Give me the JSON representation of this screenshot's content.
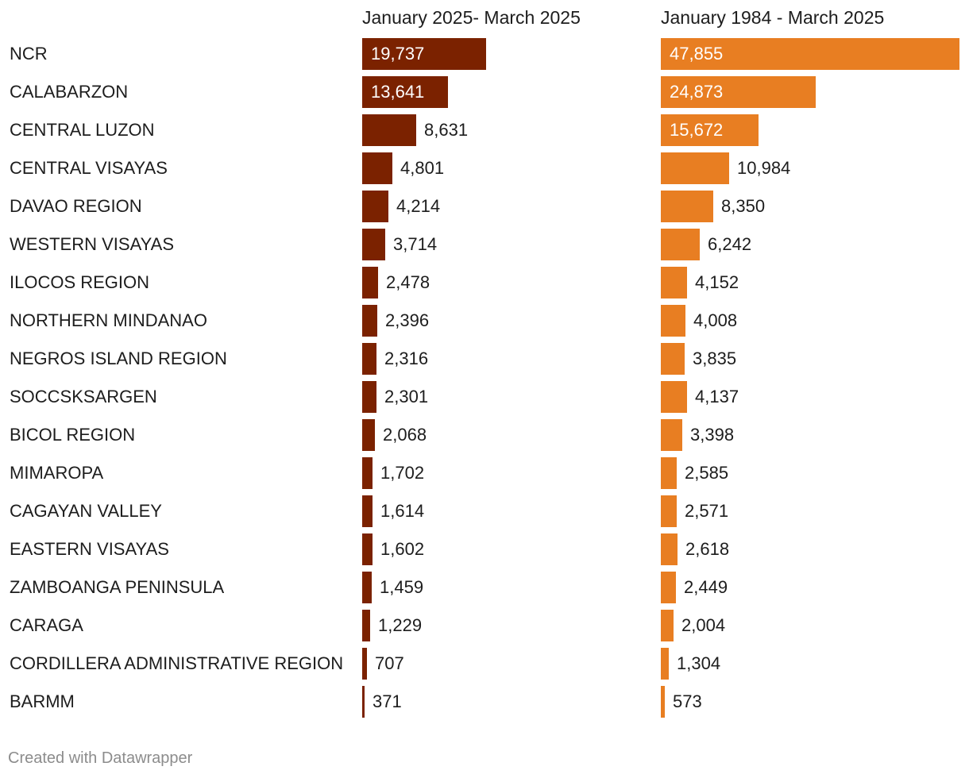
{
  "chart_data": {
    "type": "bar",
    "orientation": "horizontal",
    "categories": [
      "NCR",
      "CALABARZON",
      "CENTRAL LUZON",
      "CENTRAL VISAYAS",
      "DAVAO REGION",
      "WESTERN VISAYAS",
      "ILOCOS REGION",
      "NORTHERN MINDANAO",
      "NEGROS ISLAND REGION",
      "SOCCSKSARGEN",
      "BICOL REGION",
      "MIMAROPA",
      "CAGAYAN VALLEY",
      "EASTERN VISAYAS",
      "ZAMBOANGA PENINSULA",
      "CARAGA",
      "CORDILLERA ADMINISTRATIVE REGION",
      "BARMM"
    ],
    "series": [
      {
        "name": "January 2025- March 2025",
        "color": "#7b2200",
        "values": [
          19737,
          13641,
          8631,
          4801,
          4214,
          3714,
          2478,
          2396,
          2316,
          2301,
          2068,
          1702,
          1614,
          1602,
          1459,
          1229,
          707,
          371
        ],
        "labels": [
          "19,737",
          "13,641",
          "8,631",
          "4,801",
          "4,214",
          "3,714",
          "2,478",
          "2,396",
          "2,316",
          "2,301",
          "2,068",
          "1,702",
          "1,614",
          "1,602",
          "1,459",
          "1,229",
          "707",
          "371"
        ]
      },
      {
        "name": "January 1984 - March 2025",
        "color": "#e87e22",
        "values": [
          47855,
          24873,
          15672,
          10984,
          8350,
          6242,
          4152,
          4008,
          3835,
          4137,
          3398,
          2585,
          2571,
          2618,
          2449,
          2004,
          1304,
          573
        ],
        "labels": [
          "47,855",
          "24,873",
          "15,672",
          "10,984",
          "8,350",
          "6,242",
          "4,152",
          "4,008",
          "3,835",
          "4,137",
          "3,398",
          "2,585",
          "2,571",
          "2,618",
          "2,449",
          "2,004",
          "1,304",
          "573"
        ]
      }
    ],
    "grid": false,
    "legend": "none"
  },
  "footer": {
    "credit": "Created with Datawrapper"
  }
}
